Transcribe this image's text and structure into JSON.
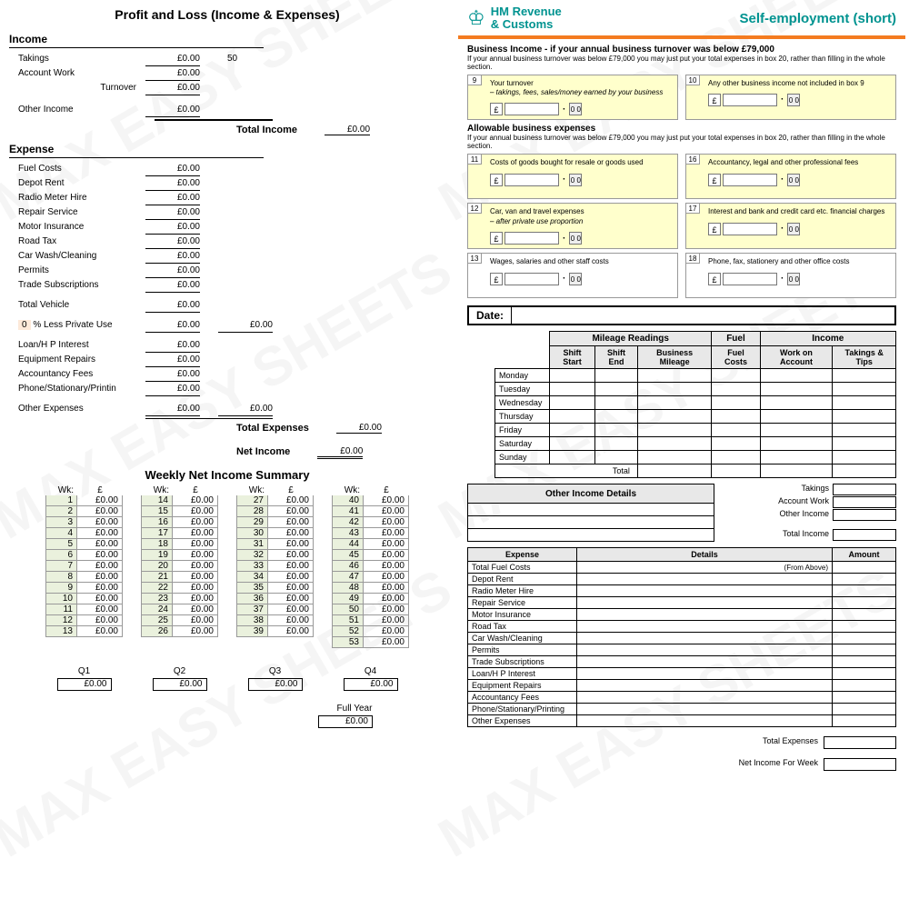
{
  "watermark_text": "MAX EASY SHEETS",
  "pl": {
    "title": "Profit and Loss  (Income & Expenses)",
    "income_hdr": "Income",
    "takings": "Takings",
    "takings_val": "£0.00",
    "takings_note": "50",
    "account_work": "Account Work",
    "account_work_val": "£0.00",
    "turnover": "Turnover",
    "turnover_val": "£0.00",
    "other_income": "Other Income",
    "other_income_val": "£0.00",
    "total_income": "Total Income",
    "total_income_val": "£0.00",
    "expense_hdr": "Expense",
    "expenses": [
      {
        "label": "Fuel Costs",
        "val": "£0.00"
      },
      {
        "label": "Depot Rent",
        "val": "£0.00"
      },
      {
        "label": "Radio Meter Hire",
        "val": "£0.00"
      },
      {
        "label": "Repair Service",
        "val": "£0.00"
      },
      {
        "label": "Motor Insurance",
        "val": "£0.00"
      },
      {
        "label": "Road Tax",
        "val": "£0.00"
      },
      {
        "label": "Car Wash/Cleaning",
        "val": "£0.00"
      },
      {
        "label": "Permits",
        "val": "£0.00"
      },
      {
        "label": "Trade Subscriptions",
        "val": "£0.00"
      }
    ],
    "total_vehicle": "Total Vehicle",
    "total_vehicle_val": "£0.00",
    "private_pct": "0",
    "private_label": "% Less Private Use",
    "private_val": "£0.00",
    "private_val2": "£0.00",
    "expenses2": [
      {
        "label": "Loan/H P Interest",
        "val": "£0.00"
      },
      {
        "label": "Equipment Repairs",
        "val": "£0.00"
      },
      {
        "label": "Accountancy Fees",
        "val": "£0.00"
      },
      {
        "label": "Phone/Stationary/Printin",
        "val": "£0.00"
      }
    ],
    "other_expenses": "Other Expenses",
    "other_expenses_val": "£0.00",
    "other_expenses_val2": "£0.00",
    "total_expenses": "Total Expenses",
    "total_expenses_val": "£0.00",
    "net_income": "Net Income",
    "net_income_val": "£0.00"
  },
  "weekly": {
    "title": "Weekly Net Income Summary",
    "wk_hdr": "Wk:",
    "amt_hdr": "£",
    "weeks": 53,
    "default_val": "£0.00",
    "quarters": [
      "Q1",
      "Q2",
      "Q3",
      "Q4"
    ],
    "qval": "£0.00",
    "fullyear": "Full Year",
    "fullyear_val": "£0.00"
  },
  "hmrc": {
    "brand1": "HM Revenue",
    "brand2": "& Customs",
    "self_emp": "Self-employment (short)",
    "bi_title": "Business Income - if your annual business turnover was below £79,000",
    "bi_note": "If your annual business turnover was below £79,000 you may just put your total expenses in box 20, rather than filling in the whole section.",
    "box9_num": "9",
    "box9_text": "Your turnover",
    "box9_sub": "– takings, fees, sales/money earned by your business",
    "box10_num": "10",
    "box10_text": "Any other business income not included in box 9",
    "abe_title": "Allowable business expenses",
    "abe_note": "If your annual business turnover was below £79,000 you may just put your total expenses in box 20, rather than filling in the whole section.",
    "box11_num": "11",
    "box11_text": "Costs of goods bought for resale or goods used",
    "box16_num": "16",
    "box16_text": "Accountancy, legal and other professional fees",
    "box12_num": "12",
    "box12_text": "Car, van and travel expenses",
    "box12_sub": "– after private use proportion",
    "box17_num": "17",
    "box17_text": "Interest and bank and credit card etc. financial charges",
    "box13_num": "13",
    "box13_text": "Wages, salaries and other staff costs",
    "box18_num": "18",
    "box18_text": "Phone, fax, stationery and other office costs",
    "pound": "£",
    "zeros": "0 0",
    "date_label": "Date:"
  },
  "mileage": {
    "grp_mileage": "Mileage Readings",
    "grp_fuel": "Fuel",
    "grp_income": "Income",
    "col_start": "Shift Start",
    "col_end": "Shift End",
    "col_biz": "Business Mileage",
    "col_fuel": "Fuel Costs",
    "col_work": "Work on Account",
    "col_tips": "Takings & Tips",
    "days": [
      "Monday",
      "Tuesday",
      "Wednesday",
      "Thursday",
      "Friday",
      "Saturday",
      "Sunday"
    ],
    "total": "Total"
  },
  "oi": {
    "header": "Other Income Details",
    "sum_takings": "Takings",
    "sum_acct": "Account Work",
    "sum_other": "Other Income",
    "sum_total": "Total Income"
  },
  "exp": {
    "col1": "Expense",
    "col2": "Details",
    "col3": "Amount",
    "from_above": "(From Above)",
    "rows": [
      "Total Fuel Costs",
      "Depot Rent",
      "Radio Meter Hire",
      "Repair Service",
      "Motor Insurance",
      "Road Tax",
      "Car Wash/Cleaning",
      "Permits",
      "Trade Subscriptions",
      "Loan/H P Interest",
      "Equipment Repairs",
      "Accountancy Fees",
      "Phone/Stationary/Printing",
      "Other Expenses"
    ],
    "total_exp": "Total Expenses",
    "net_week": "Net Income For Week"
  }
}
